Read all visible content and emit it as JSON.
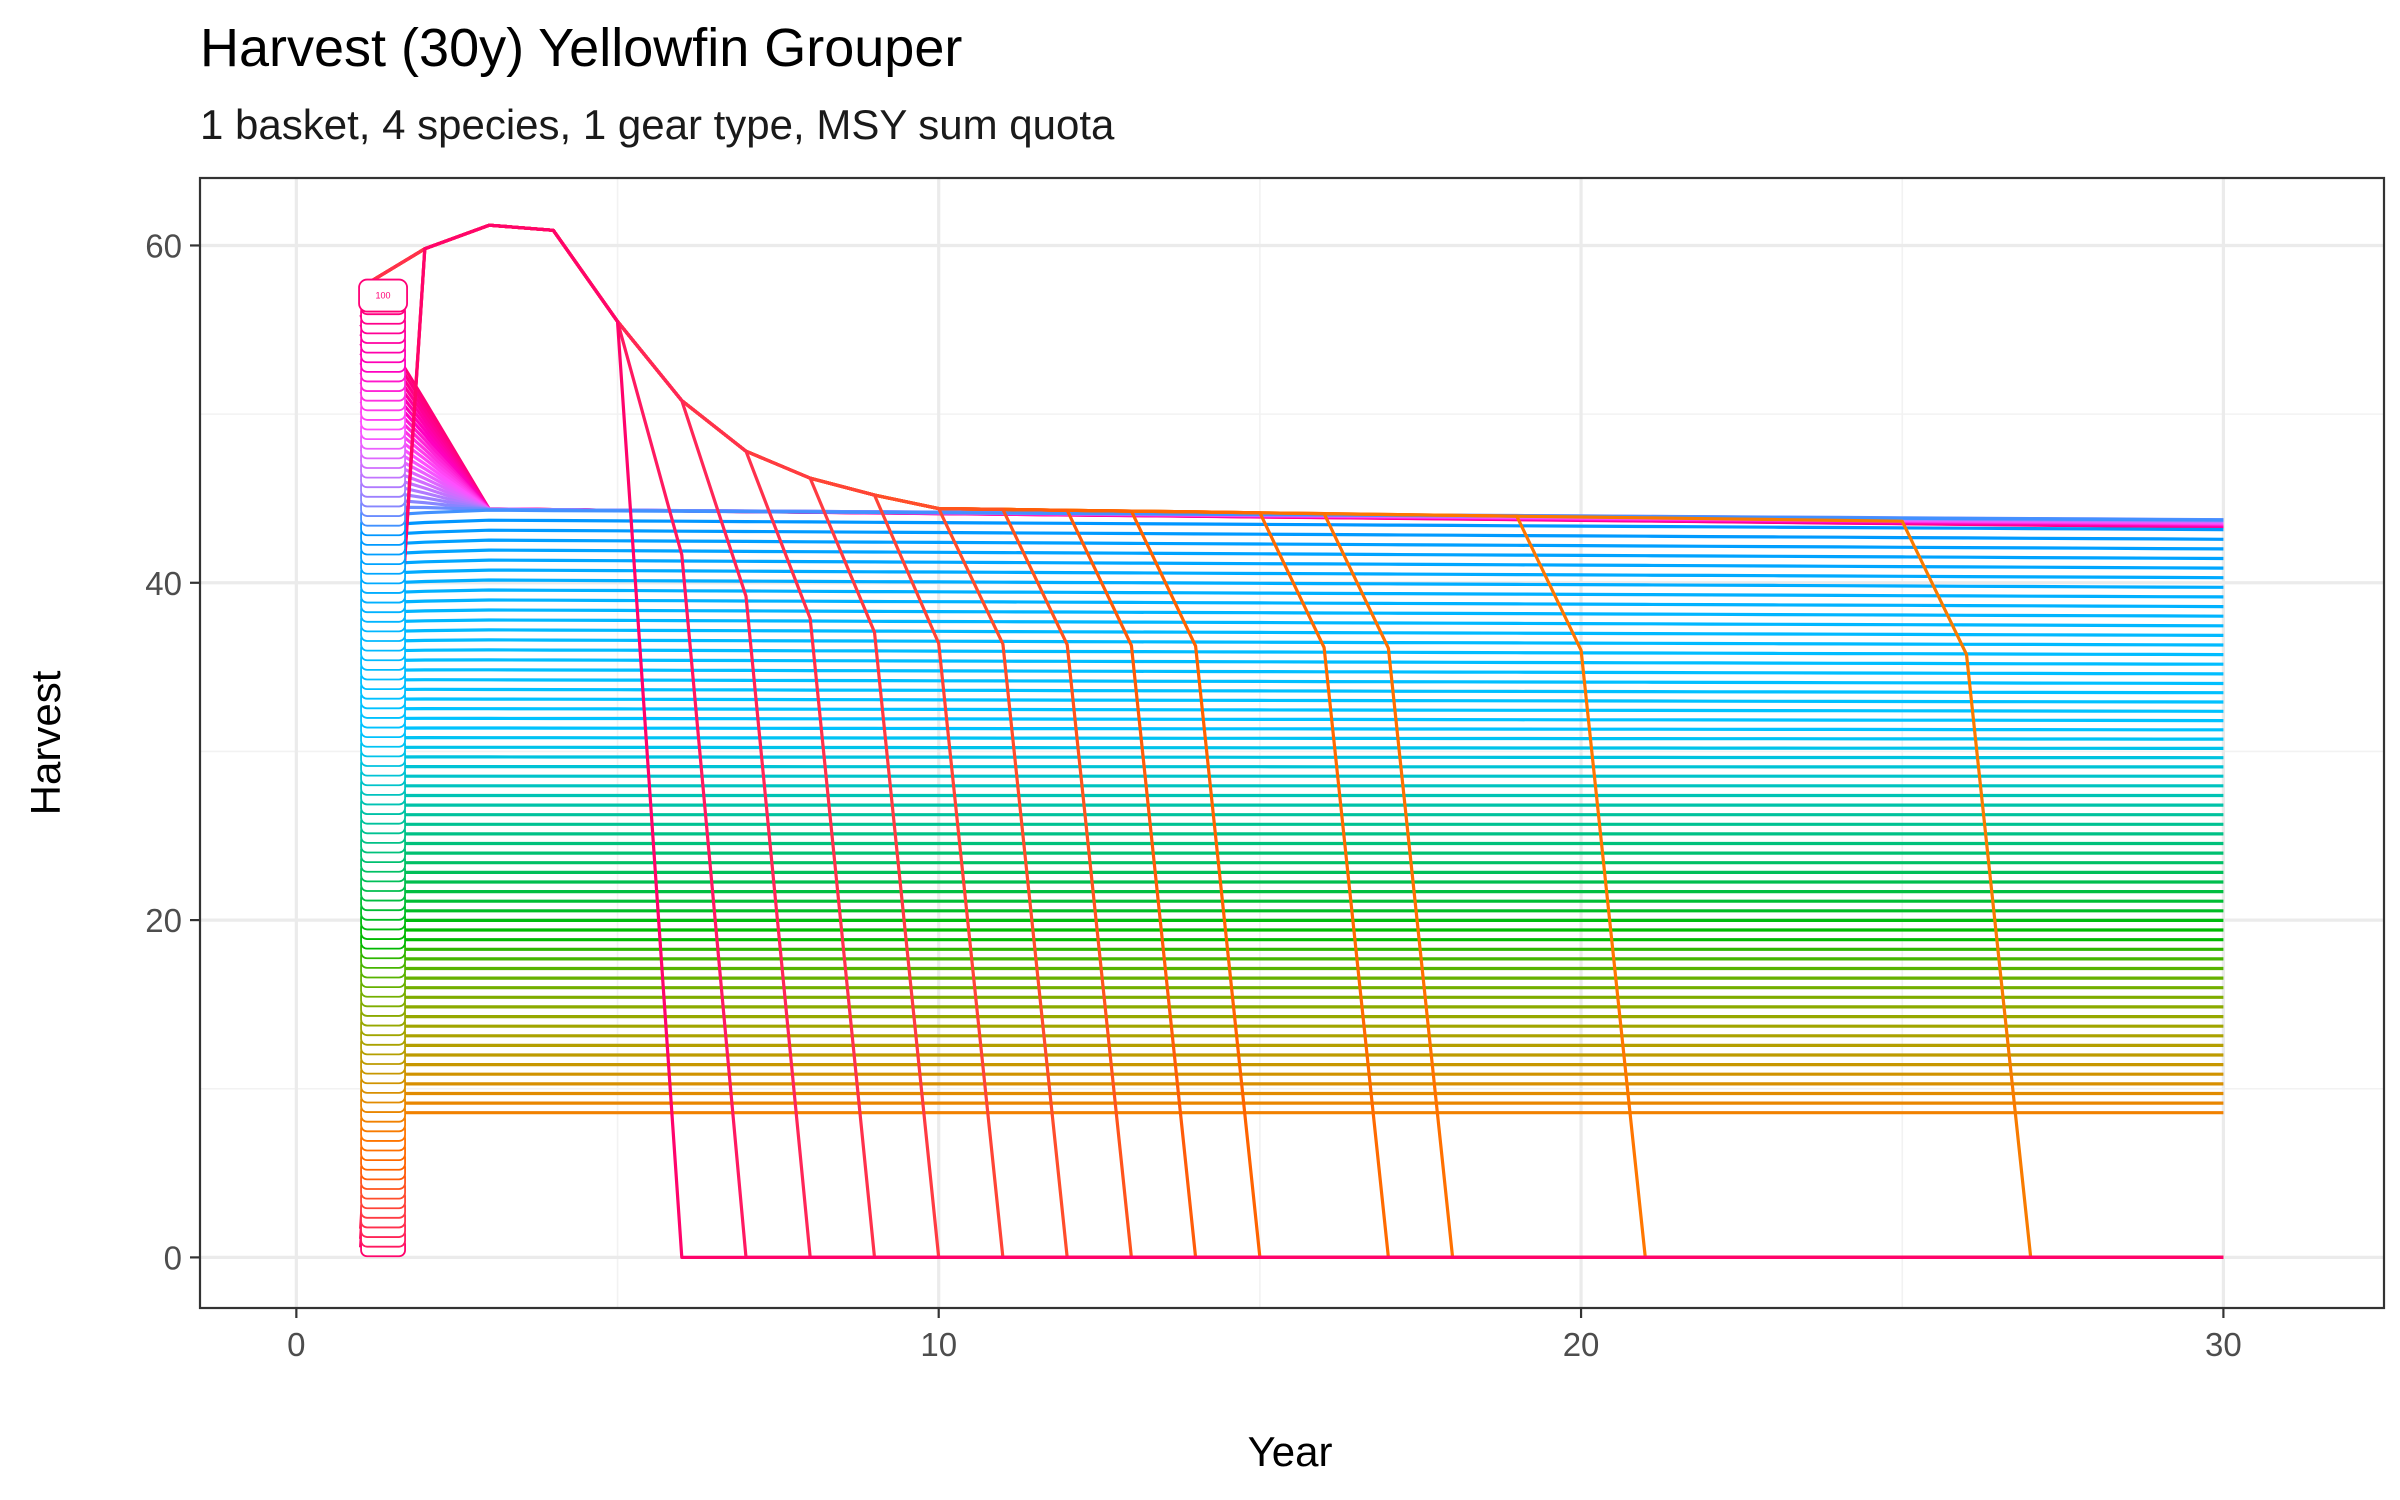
{
  "chart_data": {
    "type": "line",
    "title": "Harvest (30y) Yellowfin Grouper",
    "subtitle": "1 basket, 4 species, 1 gear type, MSY sum quota",
    "xlabel": "Year",
    "ylabel": "Harvest",
    "xlim": [
      -1.5,
      32.5
    ],
    "ylim": [
      -3,
      64
    ],
    "x_ticks": [
      0,
      10,
      20,
      30
    ],
    "y_ticks": [
      0,
      20,
      40,
      60
    ],
    "grid": true,
    "legend": "none",
    "years": [
      1,
      30
    ],
    "series_count": 100,
    "visible_label": "100",
    "collapse_series": [
      {
        "series": 1,
        "collapse_year": 6,
        "start_value": 0.6
      },
      {
        "series": 2,
        "collapse_year": 7,
        "start_value": 1.1
      },
      {
        "series": 3,
        "collapse_year": 8,
        "start_value": 1.7
      },
      {
        "series": 4,
        "collapse_year": 9,
        "start_value": 2.2
      },
      {
        "series": 5,
        "collapse_year": 10,
        "start_value": 2.8
      },
      {
        "series": 6,
        "collapse_year": 11,
        "start_value": 3.3
      },
      {
        "series": 7,
        "collapse_year": 12,
        "start_value": 3.9
      },
      {
        "series": 8,
        "collapse_year": 13,
        "start_value": 4.4
      },
      {
        "series": 9,
        "collapse_year": 14,
        "start_value": 5.0
      },
      {
        "series": 10,
        "collapse_year": 15,
        "start_value": 5.5
      },
      {
        "series": 11,
        "collapse_year": 17,
        "start_value": 6.1
      },
      {
        "series": 12,
        "collapse_year": 18,
        "start_value": 6.6
      },
      {
        "series": 13,
        "collapse_year": 21,
        "start_value": 7.2
      },
      {
        "series": 14,
        "collapse_year": 27,
        "start_value": 7.7
      }
    ],
    "peak_series": {
      "year_values": [
        [
          1,
          57.5
        ],
        [
          2,
          59.8
        ],
        [
          3,
          61.2
        ],
        [
          4,
          60.9
        ],
        [
          5,
          55.5
        ],
        [
          6,
          50.8
        ],
        [
          7,
          47.8
        ],
        [
          8,
          46.2
        ],
        [
          9,
          45.2
        ],
        [
          10,
          44.4
        ]
      ]
    },
    "end_values_year30": {
      "max": 44.3,
      "min": 0.6
    }
  }
}
